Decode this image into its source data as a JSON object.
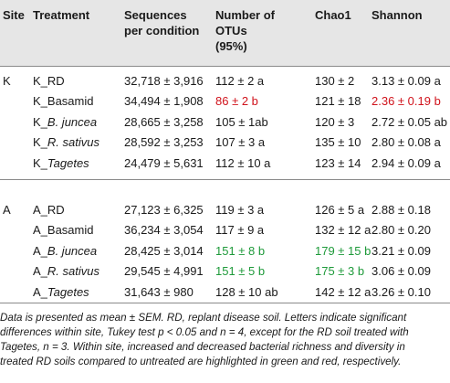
{
  "headers": {
    "site": "Site",
    "treatment": "Treatment",
    "sequences": [
      "Sequences",
      "per condition"
    ],
    "otus": [
      "Number of",
      "OTUs",
      "(95%)"
    ],
    "chao1": "Chao1",
    "shannon": "Shannon"
  },
  "colors": {
    "red": "#d0121b",
    "green": "#1e9a3a",
    "header_bg": "#e6e6e6"
  },
  "groups": [
    {
      "site": "K",
      "rows": [
        {
          "treatment": [
            "K_RD"
          ],
          "seq": "32,718 ± 3,916",
          "otus": "112 ± 2 a",
          "otus_color": "",
          "chao1": "130 ± 2",
          "chao1_color": "",
          "shannon": "3.13 ± 0.09 a",
          "shannon_color": ""
        },
        {
          "treatment": [
            "K_Basamid"
          ],
          "seq": "34,494 ± 1,908",
          "otus": "86 ± 2 b",
          "otus_color": "red",
          "chao1": "121 ± 18",
          "chao1_color": "",
          "shannon": "2.36 ± 0.19 b",
          "shannon_color": "red"
        },
        {
          "treatment": [
            "K_",
            "B. juncea"
          ],
          "seq": "28,665 ± 3,258",
          "otus": "105 ± 1ab",
          "otus_color": "",
          "chao1": "120 ± 3",
          "chao1_color": "",
          "shannon": "2.72 ± 0.05 ab",
          "shannon_color": ""
        },
        {
          "treatment": [
            "K_",
            "R. sativus"
          ],
          "seq": "28,592 ± 3,253",
          "otus": "107 ± 3 a",
          "otus_color": "",
          "chao1": "135 ± 10",
          "chao1_color": "",
          "shannon": "2.80 ± 0.08 a",
          "shannon_color": ""
        },
        {
          "treatment": [
            "K_",
            "Tagetes"
          ],
          "seq": "24,479 ± 5,631",
          "otus": "112 ± 10 a",
          "otus_color": "",
          "chao1": "123 ± 14",
          "chao1_color": "",
          "shannon": "2.94 ± 0.09 a",
          "shannon_color": ""
        }
      ]
    },
    {
      "site": "A",
      "rows": [
        {
          "treatment": [
            "A_RD"
          ],
          "seq": "27,123 ± 6,325",
          "otus": "119 ± 3 a",
          "otus_color": "",
          "chao1": "126 ± 5 a",
          "chao1_color": "",
          "shannon": "2.88 ± 0.18",
          "shannon_color": ""
        },
        {
          "treatment": [
            "A_Basamid"
          ],
          "seq": "36,234 ± 3,054",
          "otus": "117 ± 9 a",
          "otus_color": "",
          "chao1": "132 ± 12 a",
          "chao1_color": "",
          "shannon": "2.80 ± 0.20",
          "shannon_color": ""
        },
        {
          "treatment": [
            "A_",
            "B. juncea"
          ],
          "seq": "28,425 ± 3,014",
          "otus": "151 ± 8 b",
          "otus_color": "green",
          "chao1": "179 ± 15 b",
          "chao1_color": "green",
          "shannon": "3.21 ± 0.09",
          "shannon_color": ""
        },
        {
          "treatment": [
            "A_",
            "R. sativus"
          ],
          "seq": "29,545 ± 4,991",
          "otus": "151 ± 5 b",
          "otus_color": "green",
          "chao1": "175 ± 3 b",
          "chao1_color": "green",
          "shannon": "3.06 ± 0.09",
          "shannon_color": ""
        },
        {
          "treatment": [
            "A_",
            "Tagetes"
          ],
          "seq": "31,643 ± 980",
          "otus": "128 ± 10 ab",
          "otus_color": "",
          "chao1": "142 ± 12 a",
          "chao1_color": "",
          "shannon": "3.26 ± 0.10",
          "shannon_color": ""
        }
      ]
    }
  ],
  "caption": [
    "Data is presented as mean ± SEM. RD, replant disease soil. Letters indicate significant",
    "differences within site, Tukey test p < 0.05 and n = 4, except for the RD soil treated with",
    "Tagetes, n = 3. Within site, increased and decreased bacterial richness and diversity in",
    "treated RD soils compared to untreated are highlighted in green and red, respectively."
  ]
}
